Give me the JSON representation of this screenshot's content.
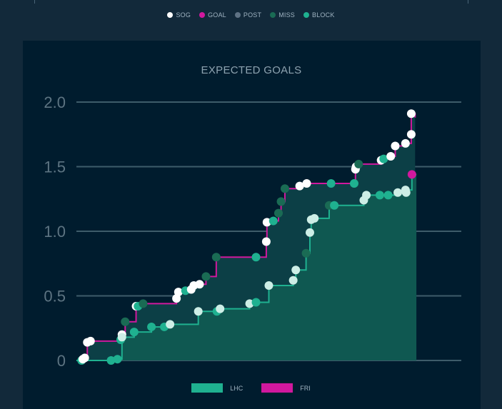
{
  "shot_legend": [
    {
      "label": "SOG",
      "color": "#ffffff"
    },
    {
      "label": "GOAL",
      "color": "#d1189e"
    },
    {
      "label": "POST",
      "color": "#5e7284"
    },
    {
      "label": "MISS",
      "color": "#1a6b54"
    },
    {
      "label": "BLOCK",
      "color": "#1fb190"
    }
  ],
  "team_legend": [
    {
      "label": "LHC",
      "color": "#1fb190"
    },
    {
      "label": "FRI",
      "color": "#d1189e"
    }
  ],
  "chart_data": {
    "type": "line",
    "title": "EXPECTED GOALS",
    "xlabel": "",
    "ylabel": "",
    "ylim": [
      0,
      2.0
    ],
    "yticks": [
      {
        "value": 0,
        "label": "0"
      },
      {
        "value": 0.5,
        "label": "0.5"
      },
      {
        "value": 1.0,
        "label": "1.0"
      },
      {
        "value": 1.5,
        "label": "1.5"
      },
      {
        "value": 2.0,
        "label": "2.0"
      }
    ],
    "x_range": [
      0,
      60
    ],
    "series": [
      {
        "name": "FRI",
        "color": "#d1189e",
        "steps": [
          [
            0,
            0
          ],
          [
            1.0,
            0.01
          ],
          [
            1.2,
            0.02
          ],
          [
            1.7,
            0.14
          ],
          [
            2.2,
            0.15
          ],
          [
            7.1,
            0.17
          ],
          [
            7.1,
            0.2
          ],
          [
            7.6,
            0.3
          ],
          [
            9.3,
            0.42
          ],
          [
            9.6,
            0.42
          ],
          [
            10.4,
            0.44
          ],
          [
            15.6,
            0.48
          ],
          [
            15.9,
            0.53
          ],
          [
            17.0,
            0.54
          ],
          [
            17.9,
            0.55
          ],
          [
            18.3,
            0.58
          ],
          [
            19.2,
            0.59
          ],
          [
            20.2,
            0.65
          ],
          [
            21.8,
            0.8
          ],
          [
            28.0,
            0.8
          ],
          [
            29.6,
            0.92
          ],
          [
            29.7,
            1.07
          ],
          [
            30.7,
            1.08
          ],
          [
            30.8,
            1.08
          ],
          [
            31.5,
            1.14
          ],
          [
            31.9,
            1.23
          ],
          [
            32.5,
            1.33
          ],
          [
            34.8,
            1.35
          ],
          [
            35.9,
            1.37
          ],
          [
            41.0,
            1.37
          ],
          [
            43.3,
            1.37
          ],
          [
            43.5,
            1.48
          ],
          [
            43.6,
            1.5
          ],
          [
            44.0,
            1.52
          ],
          [
            47.5,
            1.55
          ],
          [
            47.9,
            1.56
          ],
          [
            49.0,
            1.58
          ],
          [
            49.7,
            1.66
          ],
          [
            51.3,
            1.68
          ],
          [
            52.2,
            1.75
          ],
          [
            52.2,
            1.91
          ],
          [
            52.8,
            1.88
          ]
        ],
        "shots": [
          {
            "x": 0.8,
            "y": 0.0,
            "type": "BLOCK"
          },
          {
            "x": 1.0,
            "y": 0.01,
            "type": "SOG"
          },
          {
            "x": 1.3,
            "y": 0.02,
            "type": "SOG"
          },
          {
            "x": 1.7,
            "y": 0.14,
            "type": "SOG"
          },
          {
            "x": 2.2,
            "y": 0.15,
            "type": "SOG"
          },
          {
            "x": 7.1,
            "y": 0.2,
            "type": "SOG"
          },
          {
            "x": 7.6,
            "y": 0.3,
            "type": "MISS"
          },
          {
            "x": 9.3,
            "y": 0.42,
            "type": "SOG"
          },
          {
            "x": 9.6,
            "y": 0.42,
            "type": "BLOCK"
          },
          {
            "x": 10.4,
            "y": 0.44,
            "type": "MISS"
          },
          {
            "x": 15.6,
            "y": 0.48,
            "type": "SOG"
          },
          {
            "x": 15.9,
            "y": 0.53,
            "type": "SOG"
          },
          {
            "x": 17.0,
            "y": 0.54,
            "type": "BLOCK"
          },
          {
            "x": 17.9,
            "y": 0.55,
            "type": "SOG"
          },
          {
            "x": 18.3,
            "y": 0.58,
            "type": "SOG"
          },
          {
            "x": 19.2,
            "y": 0.59,
            "type": "SOG"
          },
          {
            "x": 20.2,
            "y": 0.65,
            "type": "MISS"
          },
          {
            "x": 21.8,
            "y": 0.8,
            "type": "MISS"
          },
          {
            "x": 28.0,
            "y": 0.8,
            "type": "BLOCK"
          },
          {
            "x": 29.6,
            "y": 0.92,
            "type": "SOG"
          },
          {
            "x": 29.7,
            "y": 1.07,
            "type": "SOG"
          },
          {
            "x": 30.7,
            "y": 1.08,
            "type": "BLOCK"
          },
          {
            "x": 31.5,
            "y": 1.14,
            "type": "MISS"
          },
          {
            "x": 31.9,
            "y": 1.23,
            "type": "MISS"
          },
          {
            "x": 32.5,
            "y": 1.33,
            "type": "MISS"
          },
          {
            "x": 34.8,
            "y": 1.35,
            "type": "SOG"
          },
          {
            "x": 35.9,
            "y": 1.37,
            "type": "SOG"
          },
          {
            "x": 39.7,
            "y": 1.37,
            "type": "BLOCK"
          },
          {
            "x": 43.3,
            "y": 1.37,
            "type": "BLOCK"
          },
          {
            "x": 43.5,
            "y": 1.48,
            "type": "SOG"
          },
          {
            "x": 43.6,
            "y": 1.5,
            "type": "SOG"
          },
          {
            "x": 44.0,
            "y": 1.52,
            "type": "MISS"
          },
          {
            "x": 47.5,
            "y": 1.55,
            "type": "SOG"
          },
          {
            "x": 47.9,
            "y": 1.56,
            "type": "BLOCK"
          },
          {
            "x": 49.0,
            "y": 1.58,
            "type": "SOG"
          },
          {
            "x": 49.7,
            "y": 1.66,
            "type": "SOG"
          },
          {
            "x": 51.3,
            "y": 1.68,
            "type": "SOG"
          },
          {
            "x": 52.2,
            "y": 1.75,
            "type": "SOG"
          },
          {
            "x": 52.2,
            "y": 1.91,
            "type": "SOG"
          }
        ]
      },
      {
        "name": "LHC",
        "color": "#1fb190",
        "steps": [
          [
            0,
            0
          ],
          [
            5.4,
            0.0
          ],
          [
            6.4,
            0.01
          ],
          [
            7.1,
            0.18
          ],
          [
            9.0,
            0.22
          ],
          [
            11.7,
            0.26
          ],
          [
            13.7,
            0.26
          ],
          [
            14.6,
            0.28
          ],
          [
            19.0,
            0.38
          ],
          [
            21.9,
            0.38
          ],
          [
            22.4,
            0.4
          ],
          [
            27.0,
            0.44
          ],
          [
            28.0,
            0.45
          ],
          [
            30.0,
            0.58
          ],
          [
            33.8,
            0.62
          ],
          [
            34.2,
            0.7
          ],
          [
            35.8,
            0.83
          ],
          [
            36.4,
            0.99
          ],
          [
            36.6,
            1.09
          ],
          [
            37.1,
            1.1
          ],
          [
            39.4,
            1.2
          ],
          [
            40.2,
            1.2
          ],
          [
            44.8,
            1.24
          ],
          [
            45.2,
            1.28
          ],
          [
            47.3,
            1.28
          ],
          [
            48.6,
            1.28
          ],
          [
            50.1,
            1.3
          ],
          [
            51.3,
            1.32
          ],
          [
            52.3,
            1.44
          ],
          [
            53.0,
            1.44
          ]
        ],
        "shots": [
          {
            "x": 5.4,
            "y": 0.0,
            "type": "BLOCK"
          },
          {
            "x": 6.4,
            "y": 0.01,
            "type": "BLOCK"
          },
          {
            "x": 6.9,
            "y": 0.16,
            "type": "BLOCK"
          },
          {
            "x": 7.1,
            "y": 0.18,
            "type": "SOG"
          },
          {
            "x": 9.0,
            "y": 0.22,
            "type": "BLOCK"
          },
          {
            "x": 11.7,
            "y": 0.26,
            "type": "BLOCK"
          },
          {
            "x": 13.7,
            "y": 0.26,
            "type": "BLOCK"
          },
          {
            "x": 14.6,
            "y": 0.28,
            "type": "SOG"
          },
          {
            "x": 19.0,
            "y": 0.38,
            "type": "SOG"
          },
          {
            "x": 21.9,
            "y": 0.38,
            "type": "BLOCK"
          },
          {
            "x": 22.4,
            "y": 0.4,
            "type": "SOG"
          },
          {
            "x": 27.0,
            "y": 0.44,
            "type": "SOG"
          },
          {
            "x": 28.0,
            "y": 0.45,
            "type": "BLOCK"
          },
          {
            "x": 30.0,
            "y": 0.58,
            "type": "SOG"
          },
          {
            "x": 33.8,
            "y": 0.62,
            "type": "SOG"
          },
          {
            "x": 34.2,
            "y": 0.7,
            "type": "SOG"
          },
          {
            "x": 35.8,
            "y": 0.83,
            "type": "MISS"
          },
          {
            "x": 36.4,
            "y": 0.99,
            "type": "SOG"
          },
          {
            "x": 36.6,
            "y": 1.09,
            "type": "SOG"
          },
          {
            "x": 37.1,
            "y": 1.1,
            "type": "SOG"
          },
          {
            "x": 39.4,
            "y": 1.2,
            "type": "MISS"
          },
          {
            "x": 40.2,
            "y": 1.2,
            "type": "BLOCK"
          },
          {
            "x": 44.8,
            "y": 1.24,
            "type": "SOG"
          },
          {
            "x": 45.2,
            "y": 1.28,
            "type": "SOG"
          },
          {
            "x": 47.3,
            "y": 1.28,
            "type": "BLOCK"
          },
          {
            "x": 48.6,
            "y": 1.28,
            "type": "BLOCK"
          },
          {
            "x": 50.1,
            "y": 1.3,
            "type": "SOG"
          },
          {
            "x": 51.3,
            "y": 1.32,
            "type": "SOG"
          },
          {
            "x": 51.4,
            "y": 1.3,
            "type": "SOG"
          },
          {
            "x": 52.3,
            "y": 1.44,
            "type": "GOAL"
          }
        ]
      }
    ]
  }
}
